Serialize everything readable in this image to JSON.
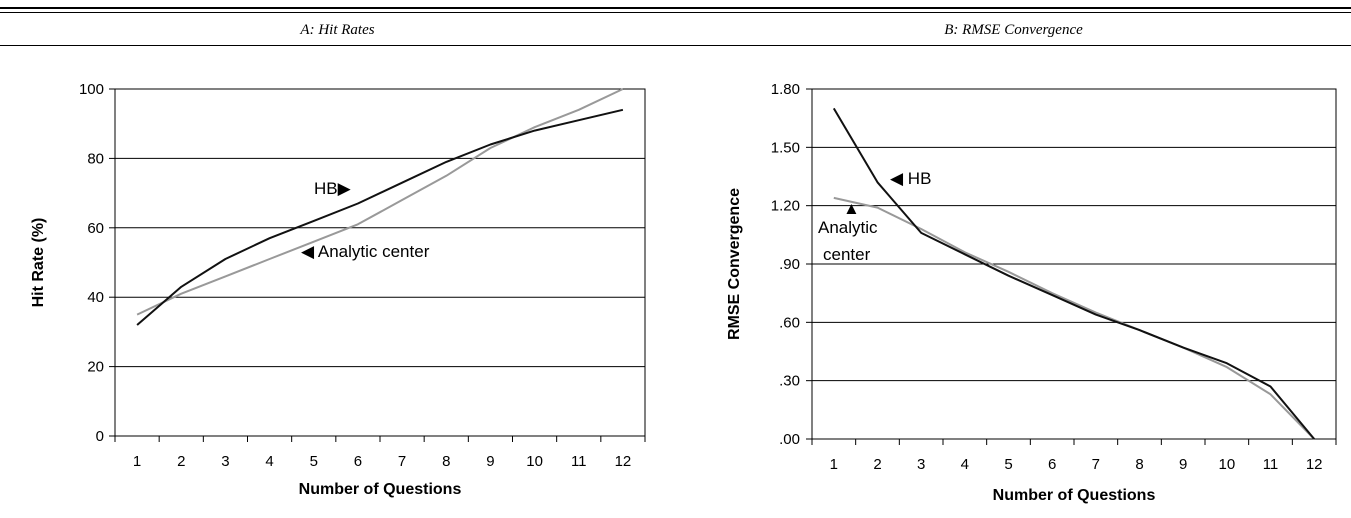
{
  "header": {
    "panel_a_title": "A: Hit Rates",
    "panel_b_title": "B: RMSE Convergence"
  },
  "colors": {
    "hb_line": "#111111",
    "analytic_line": "#999999",
    "grid": "#000000"
  },
  "chart_data": [
    {
      "type": "line",
      "title": "A: Hit Rates",
      "xlabel": "Number of Questions",
      "ylabel": "Hit Rate (%)",
      "x": [
        1,
        2,
        3,
        4,
        5,
        6,
        7,
        8,
        9,
        10,
        11,
        12
      ],
      "ylim": [
        0,
        100
      ],
      "yticks": [
        0,
        20,
        40,
        60,
        80,
        100
      ],
      "ytick_labels": [
        "0",
        "20",
        "40",
        "60",
        "80",
        "100"
      ],
      "grid": true,
      "series": [
        {
          "name": "HB",
          "values": [
            32,
            43,
            51,
            57,
            62,
            67,
            73,
            79,
            84,
            88,
            91,
            94
          ]
        },
        {
          "name": "Analytic center",
          "values": [
            35,
            41,
            46,
            51,
            56,
            61,
            68,
            75,
            83,
            89,
            94,
            100
          ]
        }
      ],
      "annotations": [
        {
          "text": "HB▶"
        },
        {
          "text": "◀ Analytic center"
        }
      ]
    },
    {
      "type": "line",
      "title": "B: RMSE Convergence",
      "xlabel": "Number of Questions",
      "ylabel": "RMSE Convergence",
      "x": [
        1,
        2,
        3,
        4,
        5,
        6,
        7,
        8,
        9,
        10,
        11,
        12
      ],
      "ylim": [
        0,
        1.8
      ],
      "yticks": [
        0,
        0.3,
        0.6,
        0.9,
        1.2,
        1.5,
        1.8
      ],
      "ytick_labels": [
        ".00",
        ".30",
        ".60",
        ".90",
        "1.20",
        "1.50",
        "1.80"
      ],
      "grid": true,
      "series": [
        {
          "name": "HB",
          "values": [
            1.7,
            1.32,
            1.06,
            0.95,
            0.84,
            0.74,
            0.64,
            0.56,
            0.47,
            0.39,
            0.27,
            0.0
          ]
        },
        {
          "name": "Analytic center",
          "values": [
            1.24,
            1.19,
            1.08,
            0.96,
            0.86,
            0.75,
            0.65,
            0.56,
            0.47,
            0.37,
            0.23,
            0.0
          ]
        }
      ],
      "annotations": [
        {
          "text": "◀ HB"
        },
        {
          "text": "▲"
        },
        {
          "text": "Analytic"
        },
        {
          "text": "center"
        }
      ]
    }
  ]
}
